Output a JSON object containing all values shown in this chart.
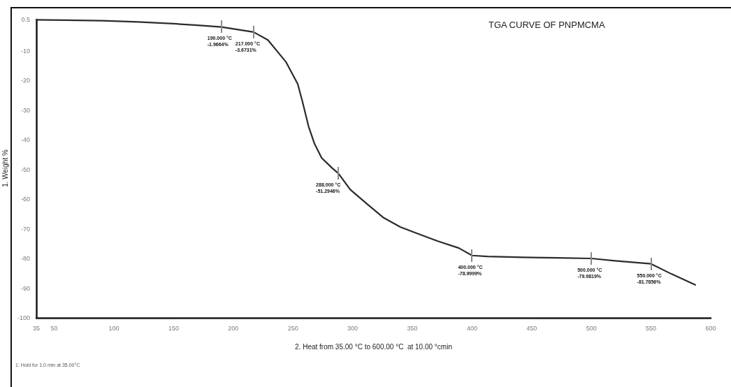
{
  "chart_data": {
    "type": "line",
    "title": "TGA CURVE OF PNPMCMA",
    "xlabel": "2. Heat from 35.00 °C to 600.00 °C  at 10.00 °cmin",
    "ylabel": "1. Weight %",
    "x": [
      35,
      60,
      90,
      120,
      150,
      170,
      190,
      217,
      229,
      244,
      254,
      258,
      263,
      268,
      274,
      283,
      288,
      298,
      312,
      326,
      340,
      353,
      371,
      389,
      400,
      413,
      443,
      472,
      500,
      520,
      550,
      567,
      587
    ],
    "values": [
      0.4,
      0.3,
      0.1,
      -0.3,
      -0.9,
      -1.4,
      -2.0,
      -3.7,
      -6.4,
      -13.7,
      -21.2,
      -27.2,
      -35.4,
      -41.3,
      -46.1,
      -49.6,
      -51.3,
      -56.8,
      -61.6,
      -66.3,
      -69.4,
      -71.4,
      -74.1,
      -76.5,
      -79.0,
      -79.3,
      -79.6,
      -79.8,
      -80.0,
      -80.8,
      -81.8,
      -85.2,
      -88.9
    ],
    "color": "#2b2b2b",
    "xlim": [
      35,
      600
    ],
    "xticks": [
      35,
      50,
      100,
      150,
      200,
      250,
      300,
      350,
      400,
      450,
      500,
      550,
      600
    ],
    "ylim": [
      -100,
      0.5
    ],
    "yticks": [
      0.5,
      -10,
      -20,
      -30,
      -40,
      -50,
      -60,
      -70,
      -80,
      -90,
      -100
    ],
    "grid": false,
    "marker": "none",
    "line_style": "solid",
    "annotations": [
      {
        "text": "190.000 °C\n-1.9664%",
        "x": 190,
        "y": -1.9664
      },
      {
        "text": "217.000 °C\n-3.6731%",
        "x": 217,
        "y": -3.6731
      },
      {
        "text": "288.000 °C\n-51.2946%",
        "x": 288,
        "y": -51.2946
      },
      {
        "text": "400.000 °C\n-78.9999%",
        "x": 400,
        "y": -78.9999
      },
      {
        "text": "500.000 °C\n-79.9819%",
        "x": 500,
        "y": -79.9819
      },
      {
        "text": "550.000 °C\n-81.7856%",
        "x": 550,
        "y": -81.7856
      },
      "1: Hold for 1.0 min at 35.00°C"
    ]
  }
}
